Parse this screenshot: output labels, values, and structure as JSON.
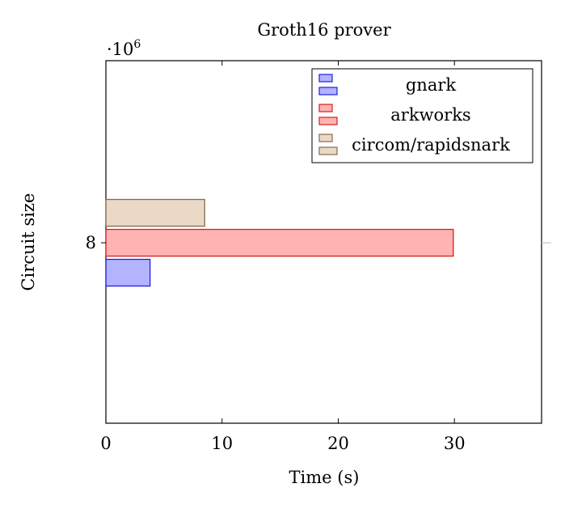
{
  "chart_data": {
    "type": "bar",
    "orientation": "horizontal",
    "title": "Groth16 prover",
    "xlabel": "Time (s)",
    "ylabel": "Circuit size",
    "y_multiplier_base": "·10",
    "y_multiplier_exp": "6",
    "categories": [
      "8"
    ],
    "series": [
      {
        "name": "gnark",
        "values": [
          3.8
        ],
        "fill": "#b3b3ff",
        "stroke": "#2020e0"
      },
      {
        "name": "arkworks",
        "values": [
          29.9
        ],
        "fill": "#ffb3b3",
        "stroke": "#d42020"
      },
      {
        "name": "circom/rapidsnark",
        "values": [
          8.5
        ],
        "fill": "#ead9c6",
        "stroke": "#8a6a4a"
      }
    ],
    "xlim": [
      0,
      37.5
    ],
    "xticks": [
      0,
      10,
      20,
      30
    ],
    "legend_position": "top-right",
    "grid": false
  }
}
